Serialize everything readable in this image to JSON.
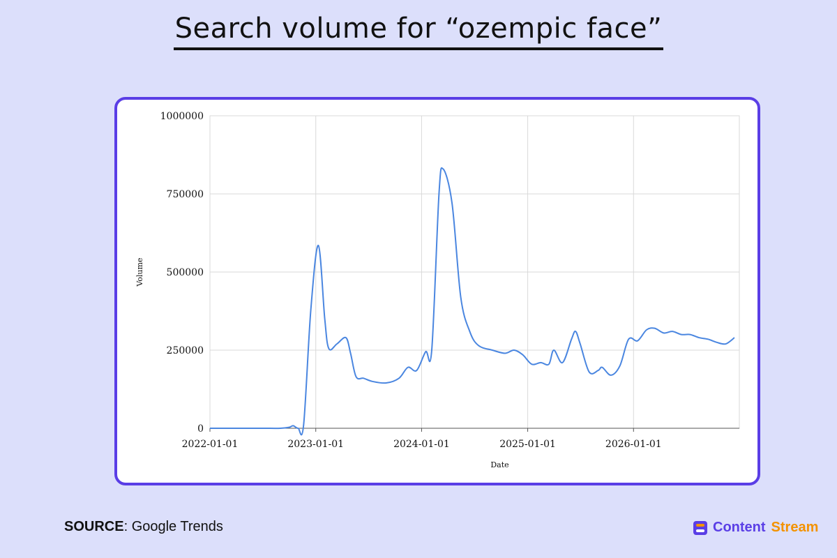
{
  "title": "Search volume for “ozempic face”",
  "footer": {
    "source_label": "SOURCE",
    "source_value": ": Google Trends"
  },
  "brand": {
    "name_part1": "Content",
    "name_part2": "Stream",
    "icon": "content-stream-logo-icon",
    "color_primary": "#5a3ee6",
    "color_secondary": "#f39200"
  },
  "colors": {
    "background": "#dcdffb",
    "card_border": "#5a3ee6",
    "line": "#4a86e0",
    "grid": "#d9d9d9"
  },
  "chart_data": {
    "type": "line",
    "xlabel": "Date",
    "ylabel": "Volume",
    "xlim": [
      "2022-01-01",
      "2027-01-01"
    ],
    "ylim": [
      0,
      1000000
    ],
    "x_ticks": [
      "2022-01-01",
      "2023-01-01",
      "2024-01-01",
      "2025-01-01",
      "2026-01-01"
    ],
    "y_ticks": [
      0,
      250000,
      500000,
      750000,
      1000000
    ],
    "grid": true,
    "series": [
      {
        "x": [
          "2022-01-01",
          "2022-04-01",
          "2022-07-01",
          "2022-09-01",
          "2022-10-01",
          "2022-10-15",
          "2022-11-01",
          "2022-11-20",
          "2022-12-15",
          "2023-01-10",
          "2023-02-01",
          "2023-02-15",
          "2023-03-15",
          "2023-04-15",
          "2023-05-01",
          "2023-05-20",
          "2023-06-15",
          "2023-07-15",
          "2023-09-01",
          "2023-10-15",
          "2023-11-15",
          "2023-12-15",
          "2024-01-15",
          "2024-02-05",
          "2024-03-01",
          "2024-03-15",
          "2024-04-15",
          "2024-05-15",
          "2024-06-15",
          "2024-07-15",
          "2024-09-01",
          "2024-10-15",
          "2024-11-15",
          "2024-12-15",
          "2025-01-15",
          "2025-02-15",
          "2025-03-15",
          "2025-04-01",
          "2025-05-01",
          "2025-06-01",
          "2025-06-15",
          "2025-07-01",
          "2025-08-01",
          "2025-09-01",
          "2025-09-15",
          "2025-10-15",
          "2025-11-15",
          "2025-12-15",
          "2026-01-15",
          "2026-02-15",
          "2026-03-15",
          "2026-04-15",
          "2026-05-15",
          "2026-06-15",
          "2026-07-15",
          "2026-08-15",
          "2026-09-15",
          "2026-10-15",
          "2026-11-15",
          "2026-12-15"
        ],
        "values": [
          0,
          0,
          0,
          0,
          3000,
          8000,
          0,
          10000,
          380000,
          585000,
          350000,
          255000,
          270000,
          290000,
          240000,
          165000,
          160000,
          150000,
          145000,
          160000,
          195000,
          185000,
          245000,
          250000,
          750000,
          830000,
          720000,
          420000,
          310000,
          265000,
          250000,
          240000,
          250000,
          235000,
          205000,
          210000,
          205000,
          250000,
          210000,
          285000,
          310000,
          270000,
          180000,
          185000,
          195000,
          170000,
          200000,
          285000,
          280000,
          315000,
          320000,
          305000,
          310000,
          300000,
          300000,
          290000,
          285000,
          275000,
          270000,
          290000
        ]
      }
    ]
  }
}
